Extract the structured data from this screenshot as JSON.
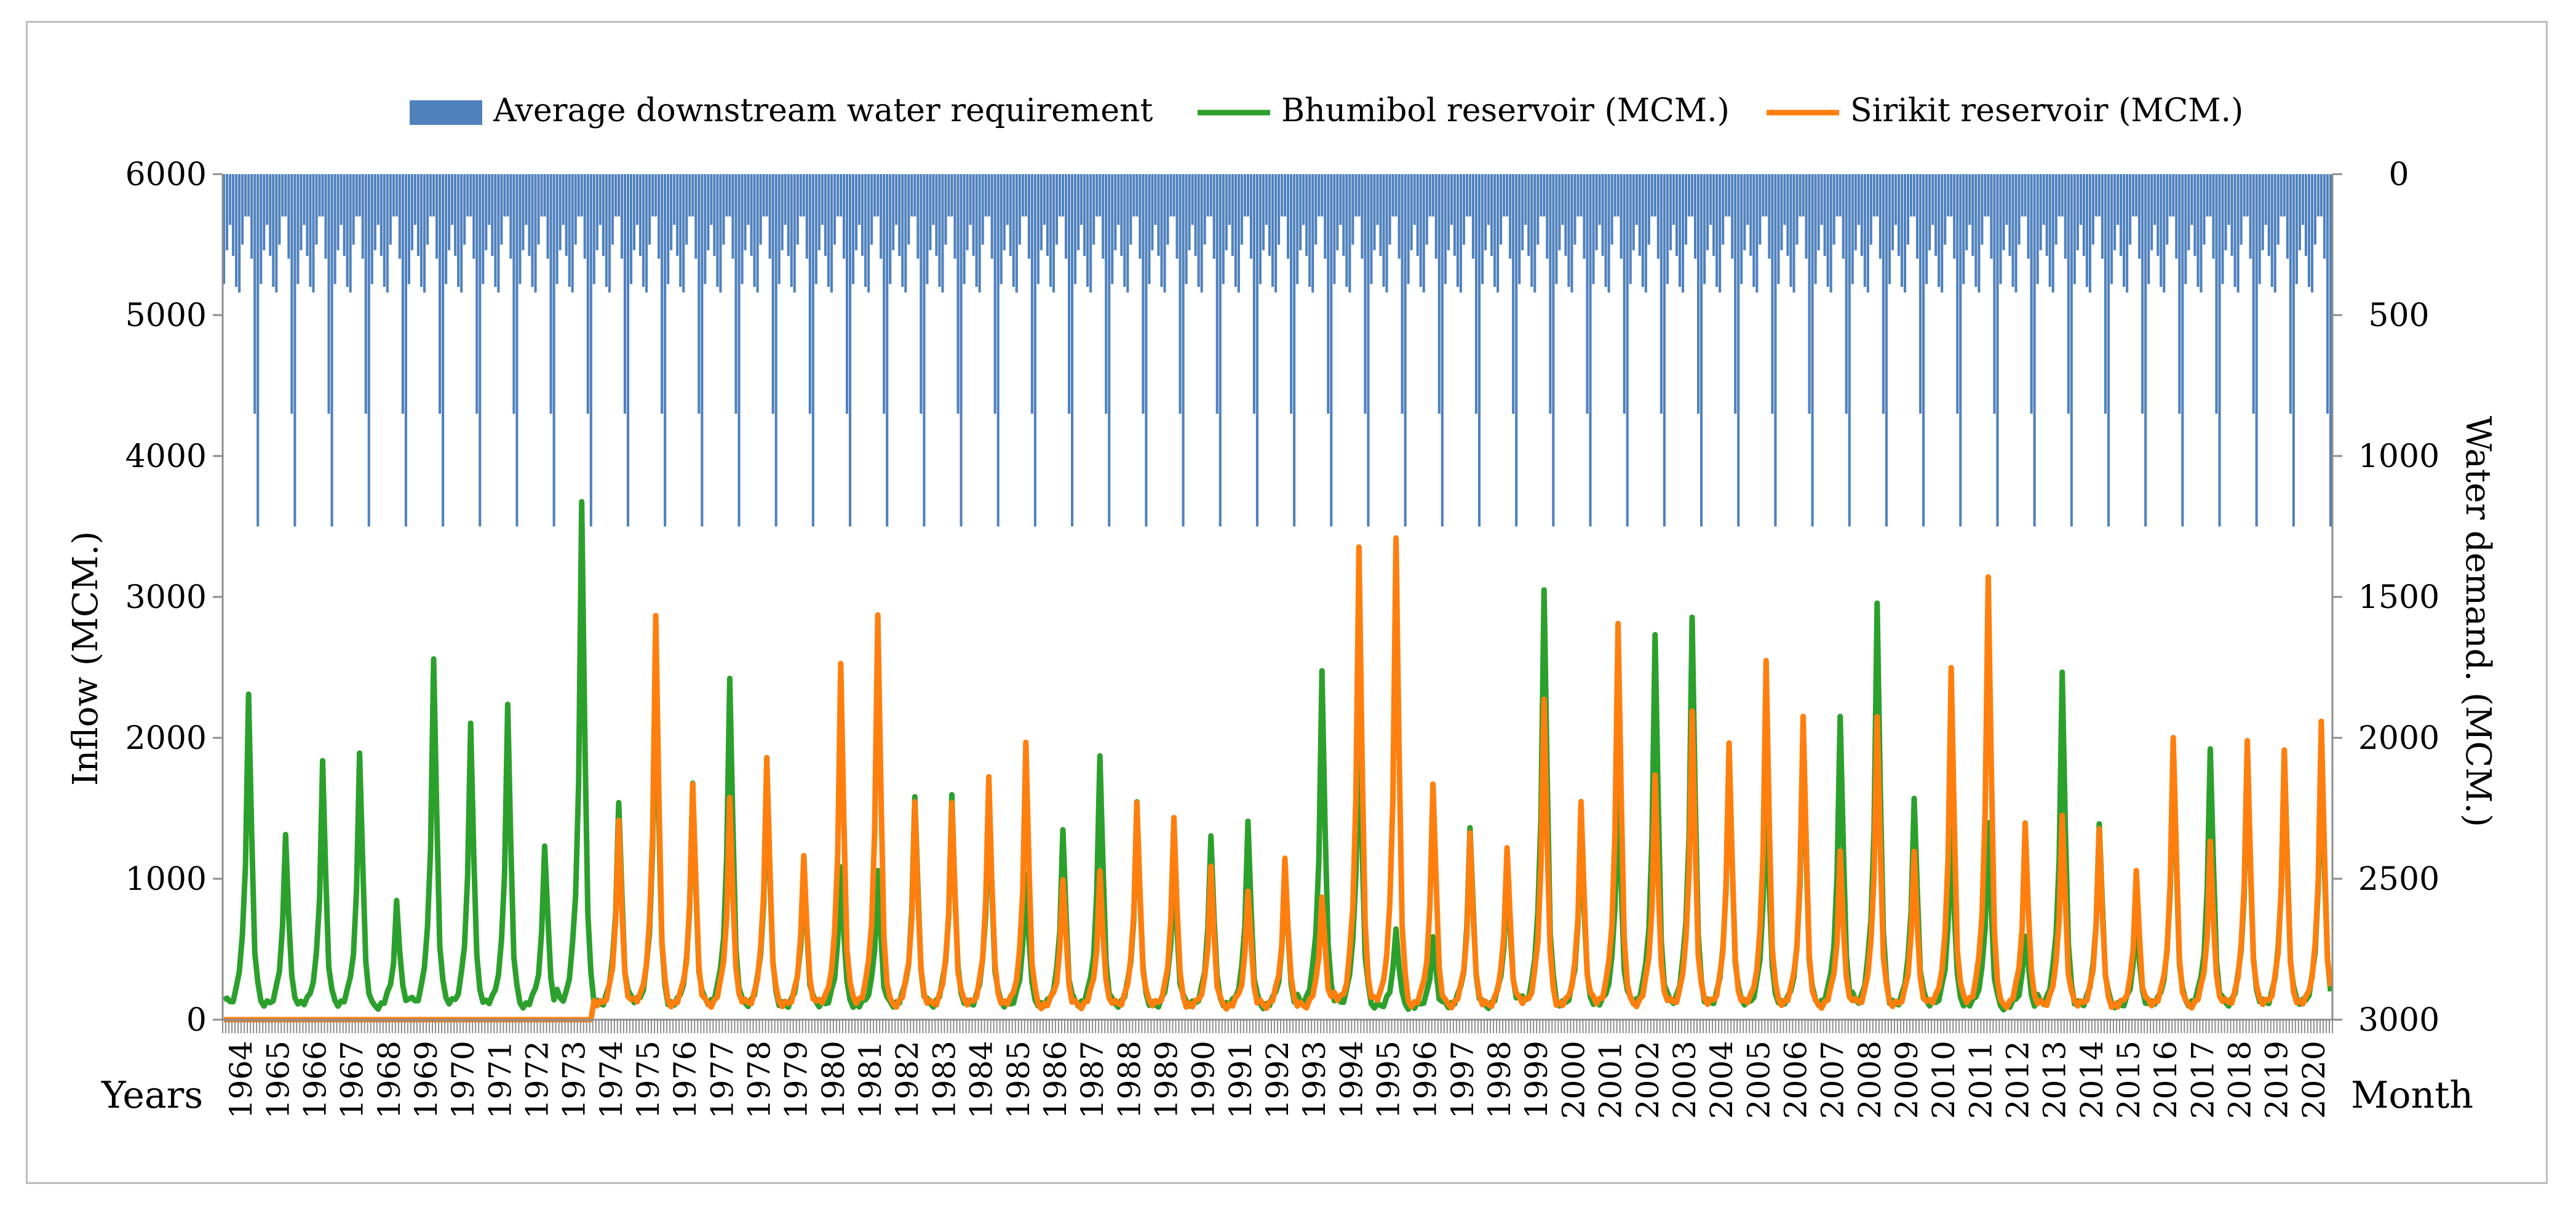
{
  "chart_data": {
    "type": "bar+line",
    "legend": [
      {
        "key": "demand",
        "label": "Average downstream water requirement",
        "color": "#4f81bd",
        "kind": "bar"
      },
      {
        "key": "bhumibol",
        "label": "Bhumibol reservoir (MCM.)",
        "color": "#2ca02c",
        "kind": "line"
      },
      {
        "key": "sirikit",
        "label": "Sirikit reservoir (MCM.)",
        "color": "#ff7f0e",
        "kind": "line"
      }
    ],
    "left_axis": {
      "label": "Inflow (MCM.)",
      "min": 0,
      "max": 6000,
      "ticks": [
        "0",
        "1000",
        "2000",
        "3000",
        "4000",
        "5000",
        "6000"
      ]
    },
    "right_axis": {
      "label": "Water demand. (MCM.)",
      "min": 0,
      "max": 3000,
      "inverted": true,
      "ticks": [
        "0",
        "500",
        "1000",
        "1500",
        "2000",
        "2500",
        "3000"
      ]
    },
    "x_axis": {
      "label_left": "Years",
      "label_right": "Month",
      "years": [
        "1964",
        "1965",
        "1966",
        "1967",
        "1968",
        "1969",
        "1970",
        "1971",
        "1972",
        "1973",
        "1974",
        "1975",
        "1976",
        "1977",
        "1978",
        "1979",
        "1980",
        "1981",
        "1982",
        "1983",
        "1984",
        "1985",
        "1986",
        "1987",
        "1988",
        "1989",
        "1990",
        "1991",
        "1992",
        "1993",
        "1994",
        "1995",
        "1996",
        "1997",
        "1998",
        "1999",
        "2000",
        "2001",
        "2002",
        "2003",
        "2004",
        "2005",
        "2006",
        "2007",
        "2008",
        "2009",
        "2010",
        "2011",
        "2012",
        "2013",
        "2014",
        "2015",
        "2016",
        "2017",
        "2018",
        "2019",
        "2020"
      ],
      "months_per_year": 12
    },
    "demand_monthly_profile_mcm": [
      390,
      270,
      180,
      290,
      400,
      420,
      250,
      150,
      150,
      300,
      850,
      1250
    ],
    "bhumibol_annual_peak_mcm": [
      2250,
      1230,
      1730,
      1820,
      750,
      2500,
      2020,
      2130,
      1160,
      3580,
      1480,
      2480,
      1570,
      2350,
      1700,
      960,
      1000,
      950,
      1510,
      1500,
      1480,
      950,
      1240,
      1800,
      1450,
      1010,
      1220,
      1300,
      940,
      2380,
      2100,
      560,
      480,
      1290,
      1020,
      2990,
      1290,
      1620,
      2660,
      2760,
      1850,
      1610,
      1990,
      2080,
      2860,
      1510,
      1280,
      1290,
      520,
      2370,
      1330,
      650,
      1850,
      1850,
      1850,
      1850,
      1850
    ],
    "sirikit_annual_peak_mcm": [
      0,
      0,
      0,
      0,
      0,
      0,
      0,
      0,
      0,
      0,
      1330,
      2760,
      1600,
      1480,
      1800,
      1080,
      2420,
      2800,
      1450,
      1480,
      1640,
      1860,
      920,
      960,
      1480,
      1350,
      980,
      840,
      1050,
      810,
      3270,
      3310,
      1600,
      1230,
      1160,
      2190,
      1440,
      2740,
      1640,
      2130,
      1880,
      2440,
      2080,
      1100,
      2090,
      1110,
      2390,
      3070,
      1300,
      1390,
      1270,
      950,
      1930,
      1170,
      1920,
      1830,
      2010
    ],
    "monthly_shape_fraction": [
      0.03,
      0.02,
      0.02,
      0.03,
      0.06,
      0.12,
      0.22,
      0.45,
      1.0,
      0.55,
      0.18,
      0.07
    ]
  }
}
